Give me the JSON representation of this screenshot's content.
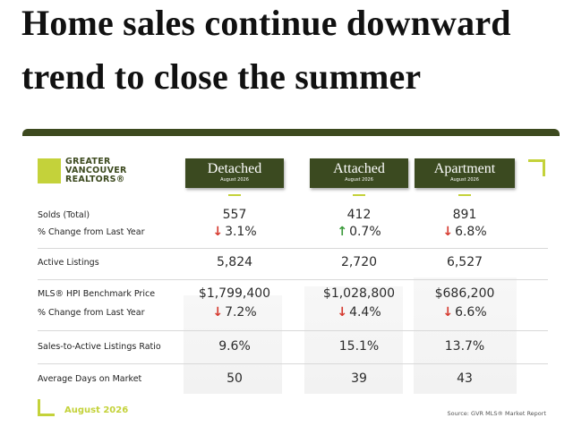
{
  "header": {
    "title_lines": [
      "Home sales continue downward",
      "trend to close the summer"
    ]
  },
  "logo": {
    "lines": [
      "GREATER",
      "VANCOUVER",
      "REALTORS®"
    ]
  },
  "columns": [
    {
      "name": "Detached",
      "period": "August 2026"
    },
    {
      "name": "Attached",
      "period": "August 2026"
    },
    {
      "name": "Apartment",
      "period": "August 2026"
    }
  ],
  "rows": [
    {
      "label": "Solds (Total)",
      "values": [
        "557",
        "412",
        "891"
      ]
    },
    {
      "label": "% Change from Last Year",
      "values": [
        "3.1%",
        "0.7%",
        "6.8%"
      ],
      "directions": [
        "down",
        "up",
        "down"
      ]
    },
    {
      "label": "Active Listings",
      "values": [
        "5,824",
        "2,720",
        "6,527"
      ]
    },
    {
      "label": "MLS® HPI Benchmark Price",
      "values": [
        "$1,799,400",
        "$1,028,800",
        "$686,200"
      ]
    },
    {
      "label": "% Change from Last Year",
      "values": [
        "7.2%",
        "4.4%",
        "6.6%"
      ],
      "directions": [
        "down",
        "down",
        "down"
      ]
    },
    {
      "label": "Sales-to-Active Listings Ratio",
      "values": [
        "9.6%",
        "15.1%",
        "13.7%"
      ]
    },
    {
      "label": "Average Days on Market",
      "values": [
        "50",
        "39",
        "43"
      ]
    }
  ],
  "footer": {
    "date": "August 2026",
    "source": "Source: GVR MLS® Market Report"
  }
}
